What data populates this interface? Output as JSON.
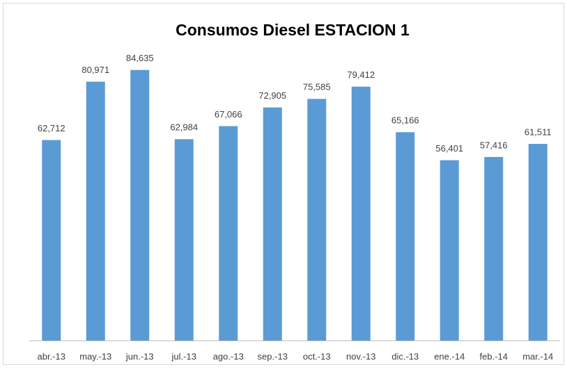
{
  "chart_data": {
    "type": "bar",
    "title": "Consumos Diesel ESTACION 1",
    "categories": [
      "abr.-13",
      "may.-13",
      "jun.-13",
      "jul.-13",
      "ago.-13",
      "sep.-13",
      "oct.-13",
      "nov.-13",
      "dic.-13",
      "ene.-14",
      "feb.-14",
      "mar.-14"
    ],
    "values": [
      62712,
      80971,
      84635,
      62984,
      67066,
      72905,
      75585,
      79412,
      65166,
      56401,
      57416,
      61511
    ],
    "value_labels": [
      "62,712",
      "80,971",
      "84,635",
      "62,984",
      "67,066",
      "72,905",
      "75,585",
      "79,412",
      "65,166",
      "56,401",
      "57,416",
      "61,511"
    ],
    "color": "#5b9bd5",
    "ylim": [
      0,
      90000
    ]
  }
}
